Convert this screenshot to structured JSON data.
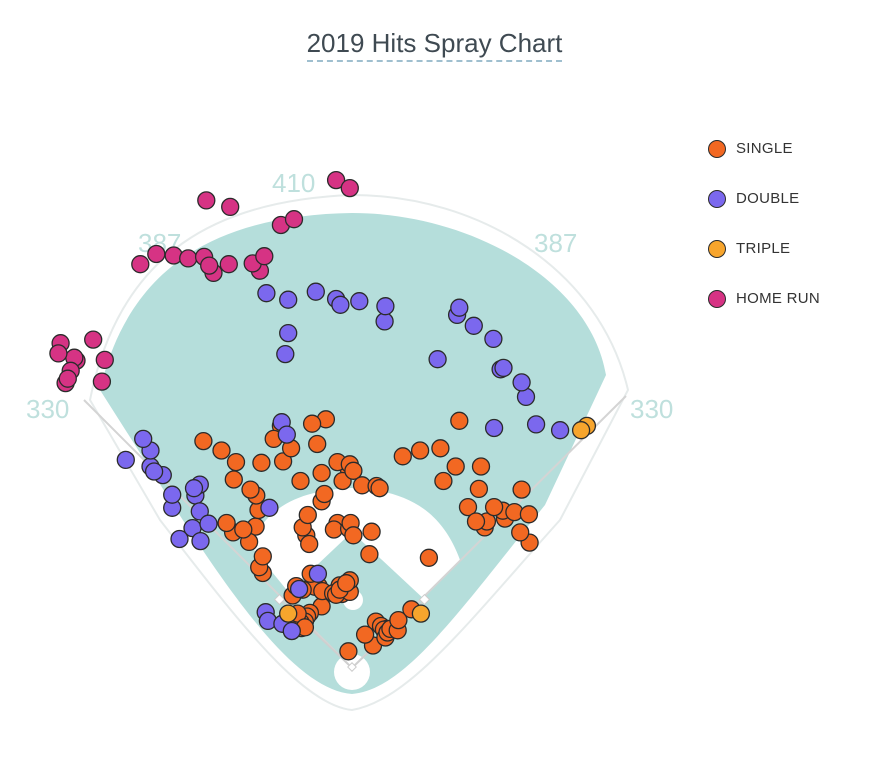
{
  "title": "2019 Hits Spray Chart",
  "colors": {
    "field": "#b5dedb",
    "field_edge": "#e7ecec",
    "infield_dirt": "#ffffff",
    "distance_label": "#bfe0dd",
    "SINGLE": "#f26822",
    "DOUBLE": "#7b68ee",
    "TRIPLE": "#f7a52d",
    "HOME RUN": "#d63384"
  },
  "legend": {
    "items": [
      {
        "label": "SINGLE",
        "color_key": "SINGLE"
      },
      {
        "label": "DOUBLE",
        "color_key": "DOUBLE"
      },
      {
        "label": "TRIPLE",
        "color_key": "TRIPLE"
      },
      {
        "label": "HOME RUN",
        "color_key": "HOME RUN"
      }
    ]
  },
  "distances": {
    "left_line": "330",
    "left_center": "387",
    "center": "410",
    "right_center": "387",
    "right_line": "330"
  },
  "chart_data": {
    "type": "scatter",
    "title": "2019 Hits Spray Chart",
    "coordinate_note": "hit locations in feet from home plate; x positive toward right field, y toward center field",
    "series": [
      {
        "name": "SINGLE",
        "points": [
          [
            -5,
            23
          ],
          [
            29,
            31
          ],
          [
            -17,
            114
          ],
          [
            -42,
            85
          ],
          [
            -46,
            113
          ],
          [
            -51,
            112
          ],
          [
            -41,
            106
          ],
          [
            -26,
            103
          ],
          [
            -14,
            102
          ],
          [
            -22,
            101
          ],
          [
            -3,
            105
          ],
          [
            -17,
            108
          ],
          [
            -3,
            121
          ],
          [
            -8,
            117
          ],
          [
            33,
            64
          ],
          [
            40,
            58
          ],
          [
            48,
            54
          ],
          [
            44,
            53
          ],
          [
            46,
            42
          ],
          [
            18,
            46
          ],
          [
            49,
            49
          ],
          [
            53,
            54
          ],
          [
            63,
            52
          ],
          [
            64,
            66
          ],
          [
            82,
            81
          ],
          [
            -58,
            76
          ],
          [
            -62,
            71
          ],
          [
            -65,
            64
          ],
          [
            -70,
            55
          ],
          [
            -71,
            63
          ],
          [
            -80,
            57
          ],
          [
            -75,
            63
          ],
          [
            -83,
            51
          ],
          [
            -82,
            69
          ],
          [
            -77,
            69
          ],
          [
            -75,
            75
          ],
          [
            -65,
            56
          ],
          [
            -82,
            100
          ],
          [
            -68,
            108
          ],
          [
            -57,
            130
          ],
          [
            -77,
            113
          ],
          [
            -123,
            131
          ],
          [
            -128,
            139
          ],
          [
            -123,
            154
          ],
          [
            -133,
            195
          ],
          [
            -142,
            174
          ],
          [
            -129,
            218
          ],
          [
            -164,
            187
          ],
          [
            -150,
            191
          ],
          [
            -173,
            200
          ],
          [
            -132,
            238
          ],
          [
            -63,
            183
          ],
          [
            -68,
            194
          ],
          [
            -61,
            211
          ],
          [
            -42,
            230
          ],
          [
            -38,
            240
          ],
          [
            -42,
            269
          ],
          [
            -71,
            258
          ],
          [
            -5,
            276
          ],
          [
            -20,
            284
          ],
          [
            -3,
            281
          ],
          [
            -13,
            258
          ],
          [
            2,
            272
          ],
          [
            14,
            252
          ],
          [
            34,
            251
          ],
          [
            38,
            248
          ],
          [
            24,
            157
          ],
          [
            27,
            188
          ],
          [
            106,
            152
          ],
          [
            160,
            222
          ],
          [
            183,
            194
          ],
          [
            186,
            202
          ],
          [
            211,
            206
          ],
          [
            208,
            217
          ],
          [
            245,
            173
          ],
          [
            224,
            215
          ],
          [
            244,
            212
          ],
          [
            234,
            246
          ],
          [
            232,
            187
          ],
          [
            171,
            202
          ],
          [
            178,
            278
          ],
          [
            175,
            247
          ],
          [
            196,
            222
          ],
          [
            -59,
            171
          ],
          [
            -20,
            200
          ],
          [
            -25,
            191
          ],
          [
            -4,
            192
          ],
          [
            -2,
            200
          ],
          [
            2,
            183
          ],
          [
            -95,
            285
          ],
          [
            -84,
            303
          ],
          [
            -36,
            343
          ],
          [
            -48,
            309
          ],
          [
            -55,
            337
          ],
          [
            -98,
            334
          ],
          [
            -125,
            283
          ],
          [
            -160,
            284
          ],
          [
            -180,
            300
          ],
          [
            -205,
            313
          ],
          [
            -163,
            260
          ],
          [
            -140,
            246
          ],
          [
            -108,
            316
          ],
          [
            94,
            300
          ],
          [
            122,
            303
          ],
          [
            143,
            278
          ],
          [
            126,
            258
          ],
          [
            148,
            341
          ],
          [
            70,
            292
          ]
        ]
      },
      {
        "name": "DOUBLE",
        "points": [
          [
            -119,
            77
          ],
          [
            -116,
            65
          ],
          [
            -96,
            61
          ],
          [
            -83,
            51
          ],
          [
            -73,
            109
          ],
          [
            -47,
            130
          ],
          [
            -114,
            221
          ],
          [
            -216,
            238
          ],
          [
            -210,
            253
          ],
          [
            -218,
            248
          ],
          [
            -210,
            216
          ],
          [
            -248,
            221
          ],
          [
            -248,
            239
          ],
          [
            -220,
            193
          ],
          [
            -198,
            199
          ],
          [
            -209,
            175
          ],
          [
            -238,
            178
          ],
          [
            -312,
            287
          ],
          [
            -261,
            266
          ],
          [
            -278,
            278
          ],
          [
            -273,
            271
          ],
          [
            -278,
            300
          ],
          [
            -288,
            316
          ],
          [
            -97,
            339
          ],
          [
            -90,
            322
          ],
          [
            -88,
            462
          ],
          [
            -92,
            433
          ],
          [
            -118,
            517
          ],
          [
            -88,
            508
          ],
          [
            -50,
            519
          ],
          [
            -22,
            509
          ],
          [
            10,
            506
          ],
          [
            -16,
            501
          ],
          [
            45,
            478
          ],
          [
            46,
            499
          ],
          [
            118,
            426
          ],
          [
            145,
            487
          ],
          [
            148,
            497
          ],
          [
            168,
            472
          ],
          [
            195,
            454
          ],
          [
            205,
            412
          ],
          [
            240,
            374
          ],
          [
            234,
            394
          ],
          [
            209,
            414
          ],
          [
            254,
            336
          ],
          [
            287,
            328
          ],
          [
            196,
            331
          ]
        ]
      },
      {
        "name": "TRIPLE",
        "points": [
          [
            95,
            75
          ],
          [
            324,
            334
          ],
          [
            316,
            328
          ],
          [
            -88,
            75
          ]
        ]
      },
      {
        "name": "HOME RUN",
        "points": [
          [
            -357,
            453
          ],
          [
            -380,
            424
          ],
          [
            -383,
            428
          ],
          [
            -388,
            410
          ],
          [
            -402,
            448
          ],
          [
            -405,
            434
          ],
          [
            -395,
            393
          ],
          [
            -392,
            399
          ],
          [
            -345,
            395
          ],
          [
            -341,
            425
          ],
          [
            -292,
            557
          ],
          [
            -270,
            571
          ],
          [
            -246,
            569
          ],
          [
            -226,
            565
          ],
          [
            -204,
            567
          ],
          [
            -191,
            545
          ],
          [
            -197,
            555
          ],
          [
            -170,
            557
          ],
          [
            -127,
            548
          ],
          [
            -137,
            558
          ],
          [
            -121,
            568
          ],
          [
            -201,
            645
          ],
          [
            -168,
            636
          ],
          [
            -98,
            611
          ],
          [
            -80,
            619
          ],
          [
            -22,
            673
          ],
          [
            -3,
            662
          ]
        ]
      }
    ]
  }
}
